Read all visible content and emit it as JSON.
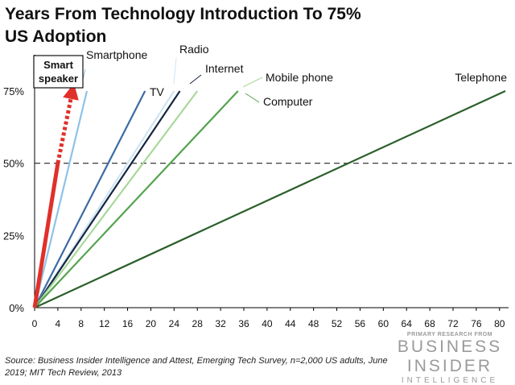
{
  "chart_data": {
    "type": "line",
    "title": "Years From Technology Introduction To 75% US Adoption",
    "xlabel": "",
    "ylabel": "",
    "xlim": [
      0,
      81
    ],
    "ylim": [
      0,
      75
    ],
    "x_ticks": [
      "0",
      "4",
      "8",
      "12",
      "16",
      "20",
      "24",
      "28",
      "32",
      "36",
      "40",
      "44",
      "48",
      "52",
      "56",
      "60",
      "64",
      "68",
      "72",
      "76",
      "80"
    ],
    "y_ticks": [
      {
        "value": 0,
        "label": "0%"
      },
      {
        "value": 25,
        "label": "25%"
      },
      {
        "value": 50,
        "label": "50%"
      },
      {
        "value": 75,
        "label": "75%"
      }
    ],
    "reference_line": {
      "y": 50,
      "style": "dashed"
    },
    "series": [
      {
        "name": "Smartphone",
        "years_to_75": 9,
        "color": "#8ec2e6",
        "values": [
          [
            0,
            0
          ],
          [
            9,
            75
          ]
        ]
      },
      {
        "name": "TV",
        "years_to_75": 19,
        "color": "#3c6aa4",
        "values": [
          [
            0,
            0
          ],
          [
            19,
            75
          ]
        ]
      },
      {
        "name": "Radio",
        "years_to_75": 24,
        "color": "#cfe4f3",
        "values": [
          [
            0,
            0
          ],
          [
            24,
            75
          ]
        ]
      },
      {
        "name": "Internet",
        "years_to_75": 25,
        "color": "#142640",
        "values": [
          [
            0,
            0
          ],
          [
            25,
            75
          ]
        ]
      },
      {
        "name": "Mobile phone",
        "years_to_75": 28,
        "color": "#a8d89a",
        "values": [
          [
            0,
            0
          ],
          [
            28,
            75
          ]
        ]
      },
      {
        "name": "Computer",
        "years_to_75": 35,
        "color": "#54a34e",
        "values": [
          [
            0,
            0
          ],
          [
            35,
            75
          ]
        ]
      },
      {
        "name": "Telephone",
        "years_to_75": 81,
        "color": "#2b5f2a",
        "values": [
          [
            0,
            0
          ],
          [
            81,
            75
          ]
        ]
      }
    ],
    "highlight": {
      "name": "Smart speaker",
      "label_lines": [
        "Smart",
        "speaker"
      ],
      "color": "#e0302a",
      "solid": [
        [
          0,
          0
        ],
        [
          4,
          50
        ]
      ],
      "projected": [
        [
          4,
          50
        ],
        [
          6.5,
          75
        ]
      ]
    }
  },
  "source_text": "Source: Business Insider Intelligence and Attest, Emerging Tech Survey, n=2,000 US adults, June 2019; MIT Tech Review, 2013",
  "brand": {
    "top": "PRIMARY RESEARCH FROM",
    "mid": "BUSINESS INSIDER",
    "bottom": "INTELLIGENCE"
  }
}
